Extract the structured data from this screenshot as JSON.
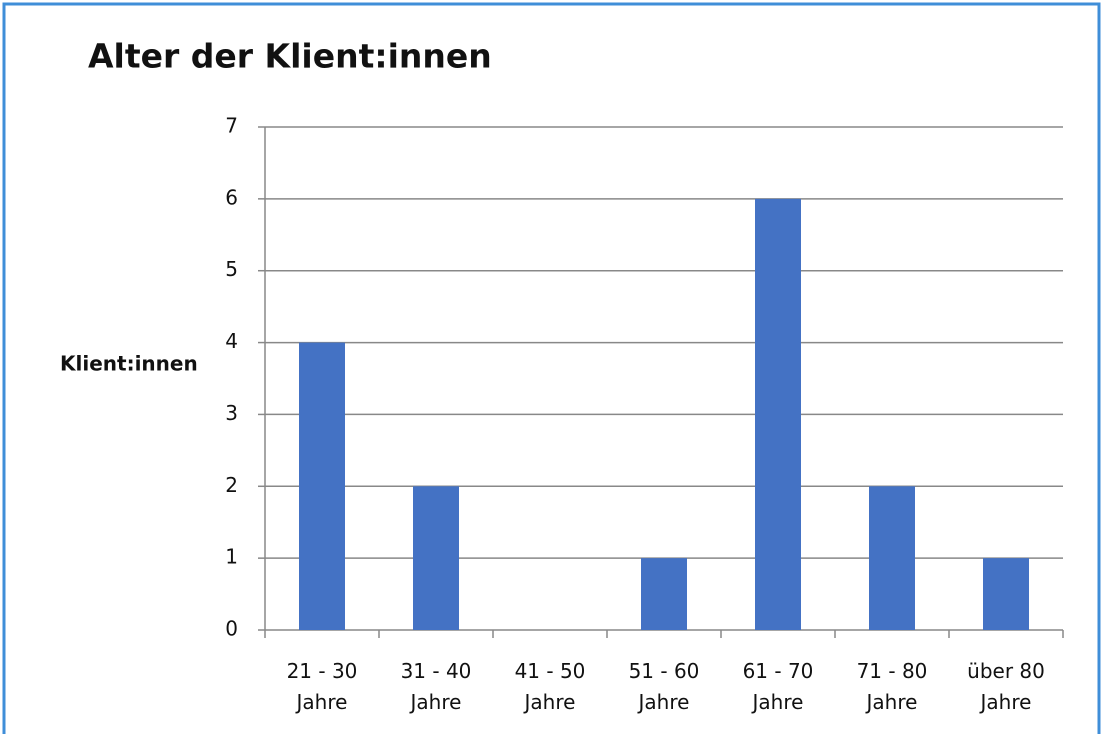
{
  "chart_data": {
    "type": "bar",
    "title": "Alter der Klient:innen",
    "y_label": "Klient:innen",
    "categories": [
      "21 - 30 Jahre",
      "31 - 40 Jahre",
      "41 - 50 Jahre",
      "51 - 60 Jahre",
      "61 - 70 Jahre",
      "71 - 80 Jahre",
      "über 80 Jahre"
    ],
    "values": [
      4,
      2,
      0,
      1,
      6,
      2,
      1
    ],
    "color": "#4472c4",
    "ylim": [
      0,
      7
    ],
    "yticks": [
      0,
      1,
      2,
      3,
      4,
      5,
      6,
      7
    ],
    "grid": true
  }
}
